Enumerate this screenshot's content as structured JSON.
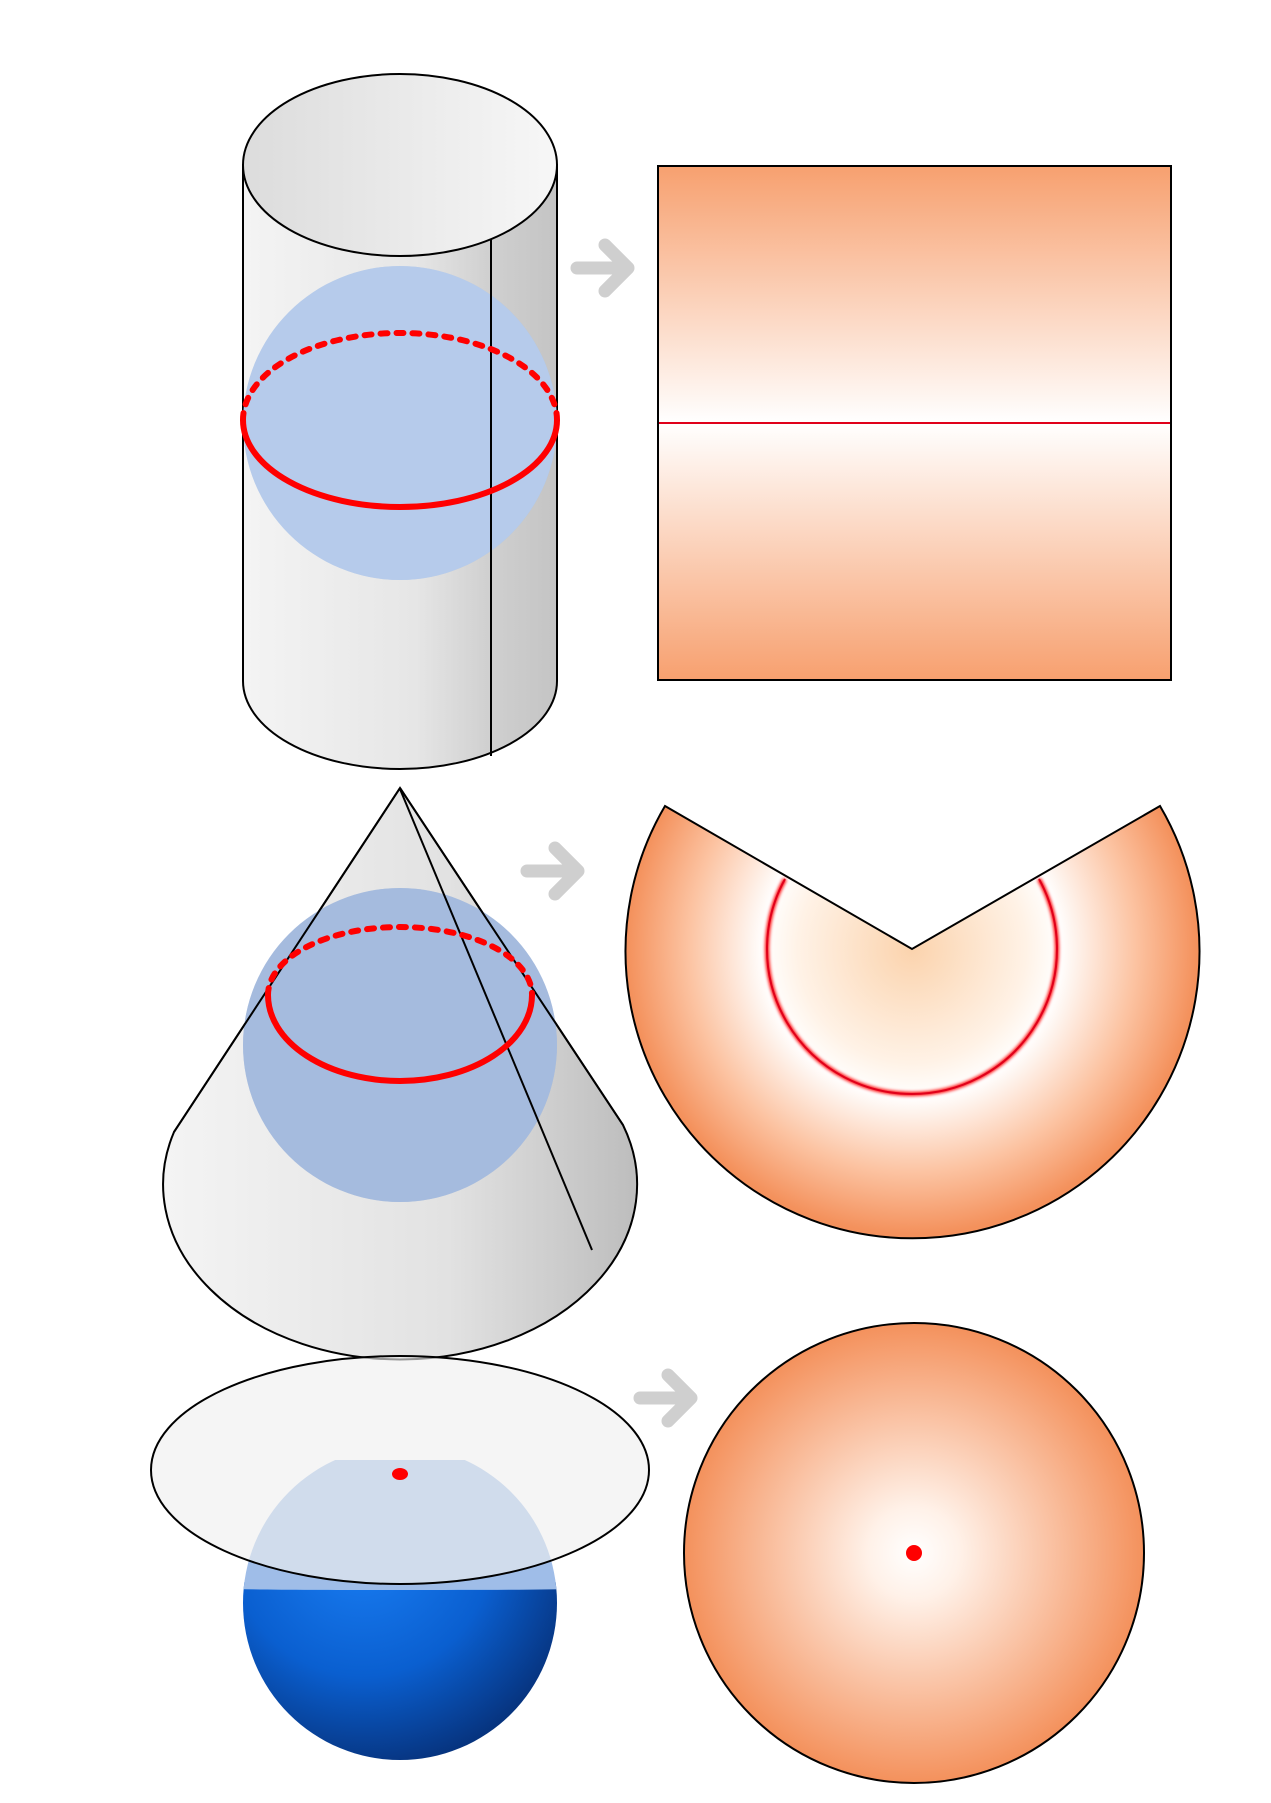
{
  "diagram": {
    "rows": [
      {
        "surface": "cylinder",
        "tangent_feature": "line",
        "result_shape": "rectangle"
      },
      {
        "surface": "cone",
        "tangent_feature": "line",
        "result_shape": "circular-sector"
      },
      {
        "surface": "plane",
        "tangent_feature": "point",
        "result_shape": "disc"
      }
    ],
    "arrow_icon": "right-arrow-icon"
  },
  "colors": {
    "tangent": "#ff0000",
    "map_edge": "#f4915c",
    "map_center": "#ffffff",
    "surface_light": "#f4f4f4",
    "surface_dark": "#b9b9b9",
    "globe_land": "#b0b6bc",
    "globe_ocean_dark": "#0a3f9b",
    "globe_ocean_light": "#0a6fe6",
    "arrow": "#cfcfcf",
    "outline": "#000000"
  }
}
